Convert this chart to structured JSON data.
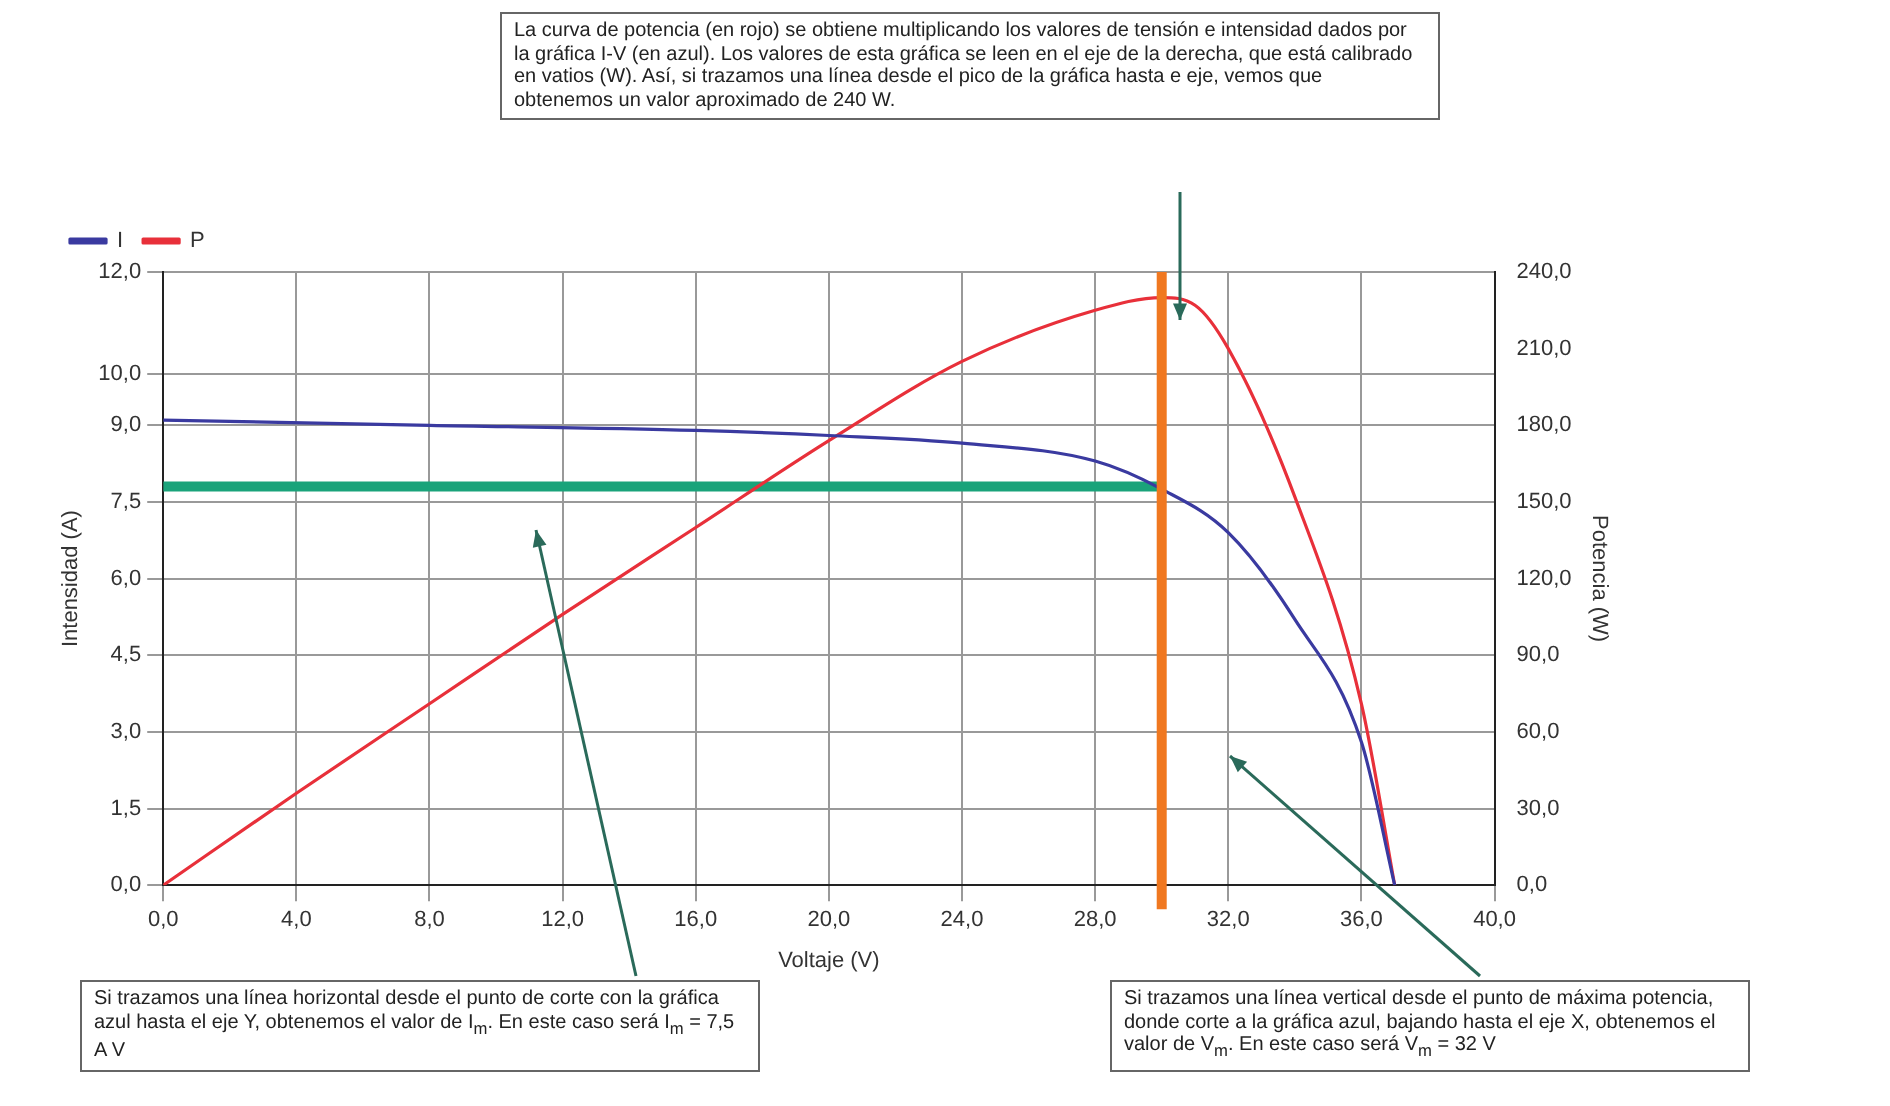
{
  "chart_data": {
    "type": "line",
    "xlabel": "Voltaje (V)",
    "ylabel": "Intensidad (A)",
    "y2label": "Potencia (W)",
    "xlim": [
      0,
      40
    ],
    "xticks": [
      {
        "value": 0,
        "label": "0,0"
      },
      {
        "value": 4,
        "label": "4,0"
      },
      {
        "value": 8,
        "label": "8,0"
      },
      {
        "value": 12,
        "label": "12,0"
      },
      {
        "value": 16,
        "label": "16,0"
      },
      {
        "value": 20,
        "label": "20,0"
      },
      {
        "value": 24,
        "label": "24,0"
      },
      {
        "value": 28,
        "label": "28,0"
      },
      {
        "value": 32,
        "label": "32,0"
      },
      {
        "value": 36,
        "label": "36,0"
      },
      {
        "value": 40,
        "label": "40,0"
      }
    ],
    "ylim": [
      0,
      12
    ],
    "yticks": [
      {
        "value": 0,
        "label": "0,0"
      },
      {
        "value": 1.5,
        "label": "1,5"
      },
      {
        "value": 3,
        "label": "3,0"
      },
      {
        "value": 4.5,
        "label": "4,5"
      },
      {
        "value": 6,
        "label": "6,0"
      },
      {
        "value": 7.5,
        "label": "7,5"
      },
      {
        "value": 9,
        "label": "9,0"
      },
      {
        "value": 10,
        "label": "10,0"
      },
      {
        "value": 12,
        "label": "12,0"
      }
    ],
    "y2lim": [
      0,
      240
    ],
    "y2ticks": [
      {
        "value": 0,
        "label": "0,0"
      },
      {
        "value": 30,
        "label": "30,0"
      },
      {
        "value": 60,
        "label": "60,0"
      },
      {
        "value": 90,
        "label": "90,0"
      },
      {
        "value": 120,
        "label": "120,0"
      },
      {
        "value": 150,
        "label": "150,0"
      },
      {
        "value": 180,
        "label": "180,0"
      },
      {
        "value": 210,
        "label": "210,0"
      },
      {
        "value": 240,
        "label": "240,0"
      }
    ],
    "series": [
      {
        "name": "I",
        "color": "#3a3aa0",
        "x": [
          0,
          8,
          16,
          20,
          24,
          28,
          30,
          32,
          34,
          36,
          37
        ],
        "values": [
          9.1,
          9.0,
          8.9,
          8.8,
          8.65,
          8.3,
          7.75,
          6.9,
          5.2,
          2.8,
          0
        ]
      },
      {
        "name": "P",
        "color": "#e8303a",
        "axis": "y2",
        "x": [
          0,
          4,
          8,
          12,
          16,
          20,
          24,
          28,
          30,
          31,
          32,
          34,
          36,
          37
        ],
        "values": [
          0,
          36,
          71,
          106,
          140,
          174,
          205,
          225,
          230,
          227,
          210,
          152,
          71,
          0
        ]
      },
      {
        "color": "#1aa37a",
        "x": [
          0,
          30
        ],
        "values": [
          7.8,
          7.8
        ]
      }
    ],
    "ref_lines": [
      {
        "axis": "x",
        "value": 30,
        "color": "#f07820"
      }
    ],
    "grid": true,
    "legend": "top left",
    "marker": "none",
    "line_style": "solid",
    "annotations": [
      "La curva de potencia (en rojo) se obtiene multiplicando los valores de tensión e intensidad dados por la gráfica I-V (en azul). Los valores de esta gráfica se leen en el eje de la derecha, que está calibrado en vatios (W). Así, si trazamos una línea desde el pico de la gráfica hasta e eje, vemos que obtenemos un valor aproximado de 240 W.",
      "Si trazamos una línea horizontal desde el punto de corte con la gráfica azul hasta el eje Y, obtenemos el valor de I$_{m}$. En este caso será I$_{m}$ = 7,5 A V",
      "Si trazamos una línea vertical desde el punto de máxima potencia, donde corte a la gráfica azul, bajando hasta el eje X, obtenemos el valor de V$_{m}$. En este caso será V$_{m}$ = 32 V"
    ]
  }
}
